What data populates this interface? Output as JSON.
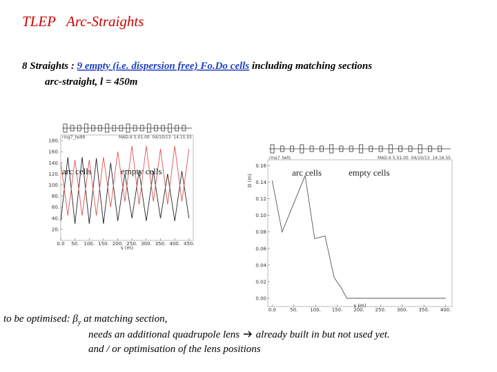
{
  "title": "TLEP   Arc-Straights",
  "intro": {
    "lead": "8 Straights : ",
    "highlight": "9 empty (i.e. dispersion free) Fo.Do cells",
    "rest": " including matching sections",
    "line2": "arc-straight, l = 450m"
  },
  "plots": [
    {
      "header_left": "ring7_tw89",
      "header_right": "MAD-X 5.01.00  04/10/13  14.15.55",
      "xlabel": "s (m)",
      "region_labels": [
        "arc cells",
        "empty cells"
      ],
      "xlim": [
        0,
        465
      ],
      "ylim": [
        0,
        190
      ],
      "xticks": [
        {
          "value": 0,
          "label": "0.0"
        },
        {
          "value": 50,
          "label": "50."
        },
        {
          "value": 100,
          "label": "100."
        },
        {
          "value": 150,
          "label": "150."
        },
        {
          "value": 200,
          "label": "200."
        },
        {
          "value": 250,
          "label": "250."
        },
        {
          "value": 300,
          "label": "300."
        },
        {
          "value": 350,
          "label": "350."
        },
        {
          "value": 400,
          "label": "400."
        },
        {
          "value": 450,
          "label": "450."
        }
      ],
      "yticks": [
        {
          "value": 20,
          "label": "20."
        },
        {
          "value": 40,
          "label": "40."
        },
        {
          "value": 60,
          "label": "60."
        },
        {
          "value": 80,
          "label": "80."
        },
        {
          "value": 100,
          "label": "100."
        },
        {
          "value": 120,
          "label": "120."
        },
        {
          "value": 140,
          "label": "140."
        },
        {
          "value": 160,
          "label": "160."
        },
        {
          "value": 180,
          "label": "180."
        }
      ],
      "x": [
        0,
        25,
        50,
        75,
        100,
        125,
        150,
        175,
        200,
        225,
        250,
        275,
        300,
        325,
        350,
        375,
        400,
        425,
        450
      ],
      "series": [
        {
          "color": "#222222",
          "values": [
            35,
            150,
            30,
            150,
            30,
            148,
            30,
            140,
            35,
            120,
            40,
            125,
            35,
            125,
            40,
            120,
            35,
            125,
            40
          ]
        },
        {
          "color": "#e05050",
          "values": [
            140,
            45,
            145,
            45,
            145,
            45,
            150,
            60,
            160,
            70,
            170,
            65,
            170,
            70,
            165,
            65,
            170,
            70,
            165
          ]
        }
      ]
    },
    {
      "header_left": "ring7_twfs",
      "header_right": "MAD-X 5.01.00  04/10/13  14.16.55",
      "xlabel": "s (m)",
      "ylabel": "D (m)",
      "region_labels": [
        "arc cells",
        "empty cells"
      ],
      "xlim": [
        -10,
        415
      ],
      "ylim": [
        -0.01,
        0.167
      ],
      "xticks": [
        {
          "value": 0,
          "label": "0.0"
        },
        {
          "value": 50,
          "label": "50."
        },
        {
          "value": 100,
          "label": "100."
        },
        {
          "value": 150,
          "label": "150."
        },
        {
          "value": 200,
          "label": "200."
        },
        {
          "value": 250,
          "label": "250."
        },
        {
          "value": 300,
          "label": "300."
        },
        {
          "value": 350,
          "label": "350."
        },
        {
          "value": 400,
          "label": "400."
        }
      ],
      "yticks": [
        {
          "value": 0,
          "label": "0.00"
        },
        {
          "value": 0.02,
          "label": "0.02"
        },
        {
          "value": 0.04,
          "label": "0.04"
        },
        {
          "value": 0.06,
          "label": "0.06"
        },
        {
          "value": 0.08,
          "label": "0.08"
        },
        {
          "value": 0.1,
          "label": "0.10"
        },
        {
          "value": 0.12,
          "label": "0.12"
        },
        {
          "value": 0.14,
          "label": "0.14"
        },
        {
          "value": 0.16,
          "label": "0.16"
        }
      ],
      "x": [
        0,
        23,
        76,
        98,
        122,
        143,
        160,
        172,
        400
      ],
      "series": [
        {
          "color": "#555555",
          "values": [
            0.142,
            0.08,
            0.148,
            0.072,
            0.075,
            0.025,
            0.012,
            0,
            0
          ]
        }
      ]
    }
  ],
  "notes": {
    "label": "to be optimised: ",
    "beta": "β",
    "sub": "y",
    "rest": " at matching section,",
    "line2a": "needs an additional quadrupole lens ",
    "line2b": " already built in but not used yet.",
    "line3": "and / or optimisation of the lens positions"
  }
}
